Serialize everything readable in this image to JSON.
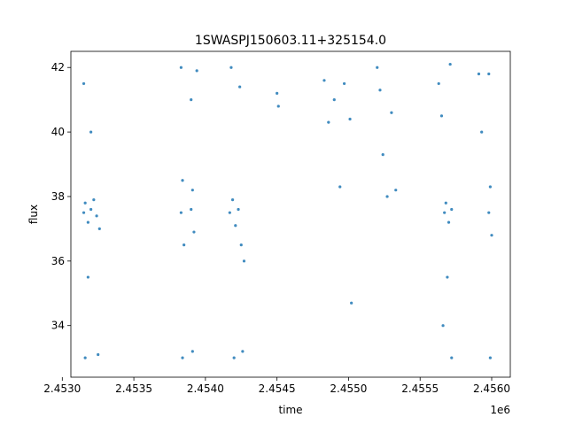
{
  "chart_data": {
    "type": "scatter",
    "title": "1SWASPJ150603.11+325154.0",
    "xlabel": "time",
    "ylabel": "flux",
    "x_offset_label": "1e6",
    "xlim": [
      2.45306,
      2.45613
    ],
    "ylim": [
      32.4,
      42.5
    ],
    "x_ticks": [
      2.453,
      2.4535,
      2.454,
      2.4545,
      2.455,
      2.4555,
      2.456
    ],
    "x_tick_labels": [
      "2.4530",
      "2.4535",
      "2.4540",
      "2.4545",
      "2.4550",
      "2.4555",
      "2.4560"
    ],
    "y_ticks": [
      34,
      36,
      38,
      40,
      42
    ],
    "y_tick_labels": [
      "34",
      "36",
      "38",
      "40",
      "42"
    ],
    "grid": false,
    "marker_color": "#1f77b4",
    "series": [
      {
        "points": [
          {
            "x": 2.45315,
            "y": 37.5
          },
          {
            "x": 2.45316,
            "y": 37.8
          },
          {
            "x": 2.45318,
            "y": 37.2
          },
          {
            "x": 2.4532,
            "y": 37.6
          },
          {
            "x": 2.45322,
            "y": 37.9
          },
          {
            "x": 2.45324,
            "y": 37.4
          },
          {
            "x": 2.45326,
            "y": 37.0
          },
          {
            "x": 2.45315,
            "y": 41.5
          },
          {
            "x": 2.45316,
            "y": 33.0
          },
          {
            "x": 2.45318,
            "y": 35.5
          },
          {
            "x": 2.4532,
            "y": 40.0
          },
          {
            "x": 2.45325,
            "y": 33.1
          },
          {
            "x": 2.45383,
            "y": 37.5
          },
          {
            "x": 2.45384,
            "y": 38.5
          },
          {
            "x": 2.45385,
            "y": 36.5
          },
          {
            "x": 2.45383,
            "y": 42.0
          },
          {
            "x": 2.45384,
            "y": 33.0
          },
          {
            "x": 2.4539,
            "y": 37.6
          },
          {
            "x": 2.45391,
            "y": 38.2
          },
          {
            "x": 2.45392,
            "y": 36.9
          },
          {
            "x": 2.4539,
            "y": 41.0
          },
          {
            "x": 2.45391,
            "y": 33.2
          },
          {
            "x": 2.45394,
            "y": 41.9
          },
          {
            "x": 2.45417,
            "y": 37.5
          },
          {
            "x": 2.45419,
            "y": 37.9
          },
          {
            "x": 2.45421,
            "y": 37.1
          },
          {
            "x": 2.45423,
            "y": 37.6
          },
          {
            "x": 2.45425,
            "y": 36.5
          },
          {
            "x": 2.45427,
            "y": 36.0
          },
          {
            "x": 2.45418,
            "y": 42.0
          },
          {
            "x": 2.4542,
            "y": 33.0
          },
          {
            "x": 2.45424,
            "y": 41.4
          },
          {
            "x": 2.45426,
            "y": 33.2
          },
          {
            "x": 2.4545,
            "y": 41.2
          },
          {
            "x": 2.45451,
            "y": 40.8
          },
          {
            "x": 2.45483,
            "y": 41.6
          },
          {
            "x": 2.45486,
            "y": 40.3
          },
          {
            "x": 2.4549,
            "y": 41.0
          },
          {
            "x": 2.45494,
            "y": 38.3
          },
          {
            "x": 2.45497,
            "y": 41.5
          },
          {
            "x": 2.45501,
            "y": 40.4
          },
          {
            "x": 2.45502,
            "y": 34.7
          },
          {
            "x": 2.4552,
            "y": 42.0
          },
          {
            "x": 2.45522,
            "y": 41.3
          },
          {
            "x": 2.45524,
            "y": 39.3
          },
          {
            "x": 2.45527,
            "y": 38.0
          },
          {
            "x": 2.4553,
            "y": 40.6
          },
          {
            "x": 2.45533,
            "y": 38.2
          },
          {
            "x": 2.45563,
            "y": 41.5
          },
          {
            "x": 2.45565,
            "y": 40.5
          },
          {
            "x": 2.45567,
            "y": 37.5
          },
          {
            "x": 2.45568,
            "y": 37.8
          },
          {
            "x": 2.4557,
            "y": 37.2
          },
          {
            "x": 2.45572,
            "y": 37.6
          },
          {
            "x": 2.45569,
            "y": 35.5
          },
          {
            "x": 2.45571,
            "y": 42.1
          },
          {
            "x": 2.45572,
            "y": 33.0
          },
          {
            "x": 2.45566,
            "y": 34.0
          },
          {
            "x": 2.45591,
            "y": 41.8
          },
          {
            "x": 2.45593,
            "y": 40.0
          },
          {
            "x": 2.45598,
            "y": 37.5
          },
          {
            "x": 2.45599,
            "y": 38.3
          },
          {
            "x": 2.456,
            "y": 36.8
          },
          {
            "x": 2.45598,
            "y": 41.8
          },
          {
            "x": 2.45599,
            "y": 33.0
          }
        ]
      }
    ]
  }
}
